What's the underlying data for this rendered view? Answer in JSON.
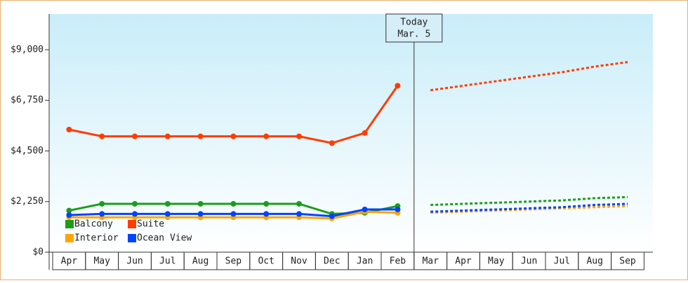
{
  "chart_data": {
    "type": "line",
    "annotation": [
      "Today",
      "Mar. 5"
    ],
    "categories": [
      "Apr",
      "May",
      "Jun",
      "Jul",
      "Aug",
      "Sep",
      "Oct",
      "Nov",
      "Dec",
      "Jan",
      "Feb",
      "Mar",
      "Apr",
      "May",
      "Jun",
      "Jul",
      "Aug",
      "Sep"
    ],
    "series": [
      {
        "name": "Balcony",
        "color": "#1a9e1a",
        "values": [
          1850,
          2150,
          2150,
          2150,
          2150,
          2150,
          2150,
          2150,
          1700,
          1750,
          2050,
          null,
          null,
          null,
          null,
          null,
          null,
          null
        ],
        "projected": [
          null,
          null,
          null,
          null,
          null,
          null,
          null,
          null,
          null,
          null,
          null,
          2100,
          2150,
          2200,
          2250,
          2300,
          2400,
          2450
        ]
      },
      {
        "name": "Suite",
        "color": "#ff3c00",
        "values": [
          5450,
          5150,
          5150,
          5150,
          5150,
          5150,
          5150,
          5150,
          4850,
          5300,
          7400,
          null,
          null,
          null,
          null,
          null,
          null,
          null
        ],
        "projected": [
          null,
          null,
          null,
          null,
          null,
          null,
          null,
          null,
          null,
          null,
          null,
          7200,
          7400,
          7600,
          7800,
          8000,
          8250,
          8450
        ]
      },
      {
        "name": "Interior",
        "color": "#ffa500",
        "values": [
          1550,
          1550,
          1550,
          1550,
          1550,
          1550,
          1550,
          1550,
          1500,
          1800,
          1750,
          null,
          null,
          null,
          null,
          null,
          null,
          null
        ],
        "projected": [
          null,
          null,
          null,
          null,
          null,
          null,
          null,
          null,
          null,
          null,
          null,
          1750,
          1800,
          1850,
          1900,
          1950,
          2000,
          2050
        ]
      },
      {
        "name": "Ocean View",
        "color": "#0044ff",
        "values": [
          1650,
          1700,
          1700,
          1700,
          1700,
          1700,
          1700,
          1700,
          1600,
          1900,
          1900,
          null,
          null,
          null,
          null,
          null,
          null,
          null
        ],
        "projected": [
          null,
          null,
          null,
          null,
          null,
          null,
          null,
          null,
          null,
          null,
          null,
          1800,
          1850,
          1900,
          1950,
          2000,
          2100,
          2150
        ]
      }
    ],
    "ylim": [
      0,
      10588
    ],
    "yticks": [
      {
        "value": 0,
        "label": "$0"
      },
      {
        "value": 2250,
        "label": "$2,250"
      },
      {
        "value": 4500,
        "label": "$4,500"
      },
      {
        "value": 6750,
        "label": "$6,750"
      },
      {
        "value": 9000,
        "label": "$9,000"
      }
    ]
  }
}
